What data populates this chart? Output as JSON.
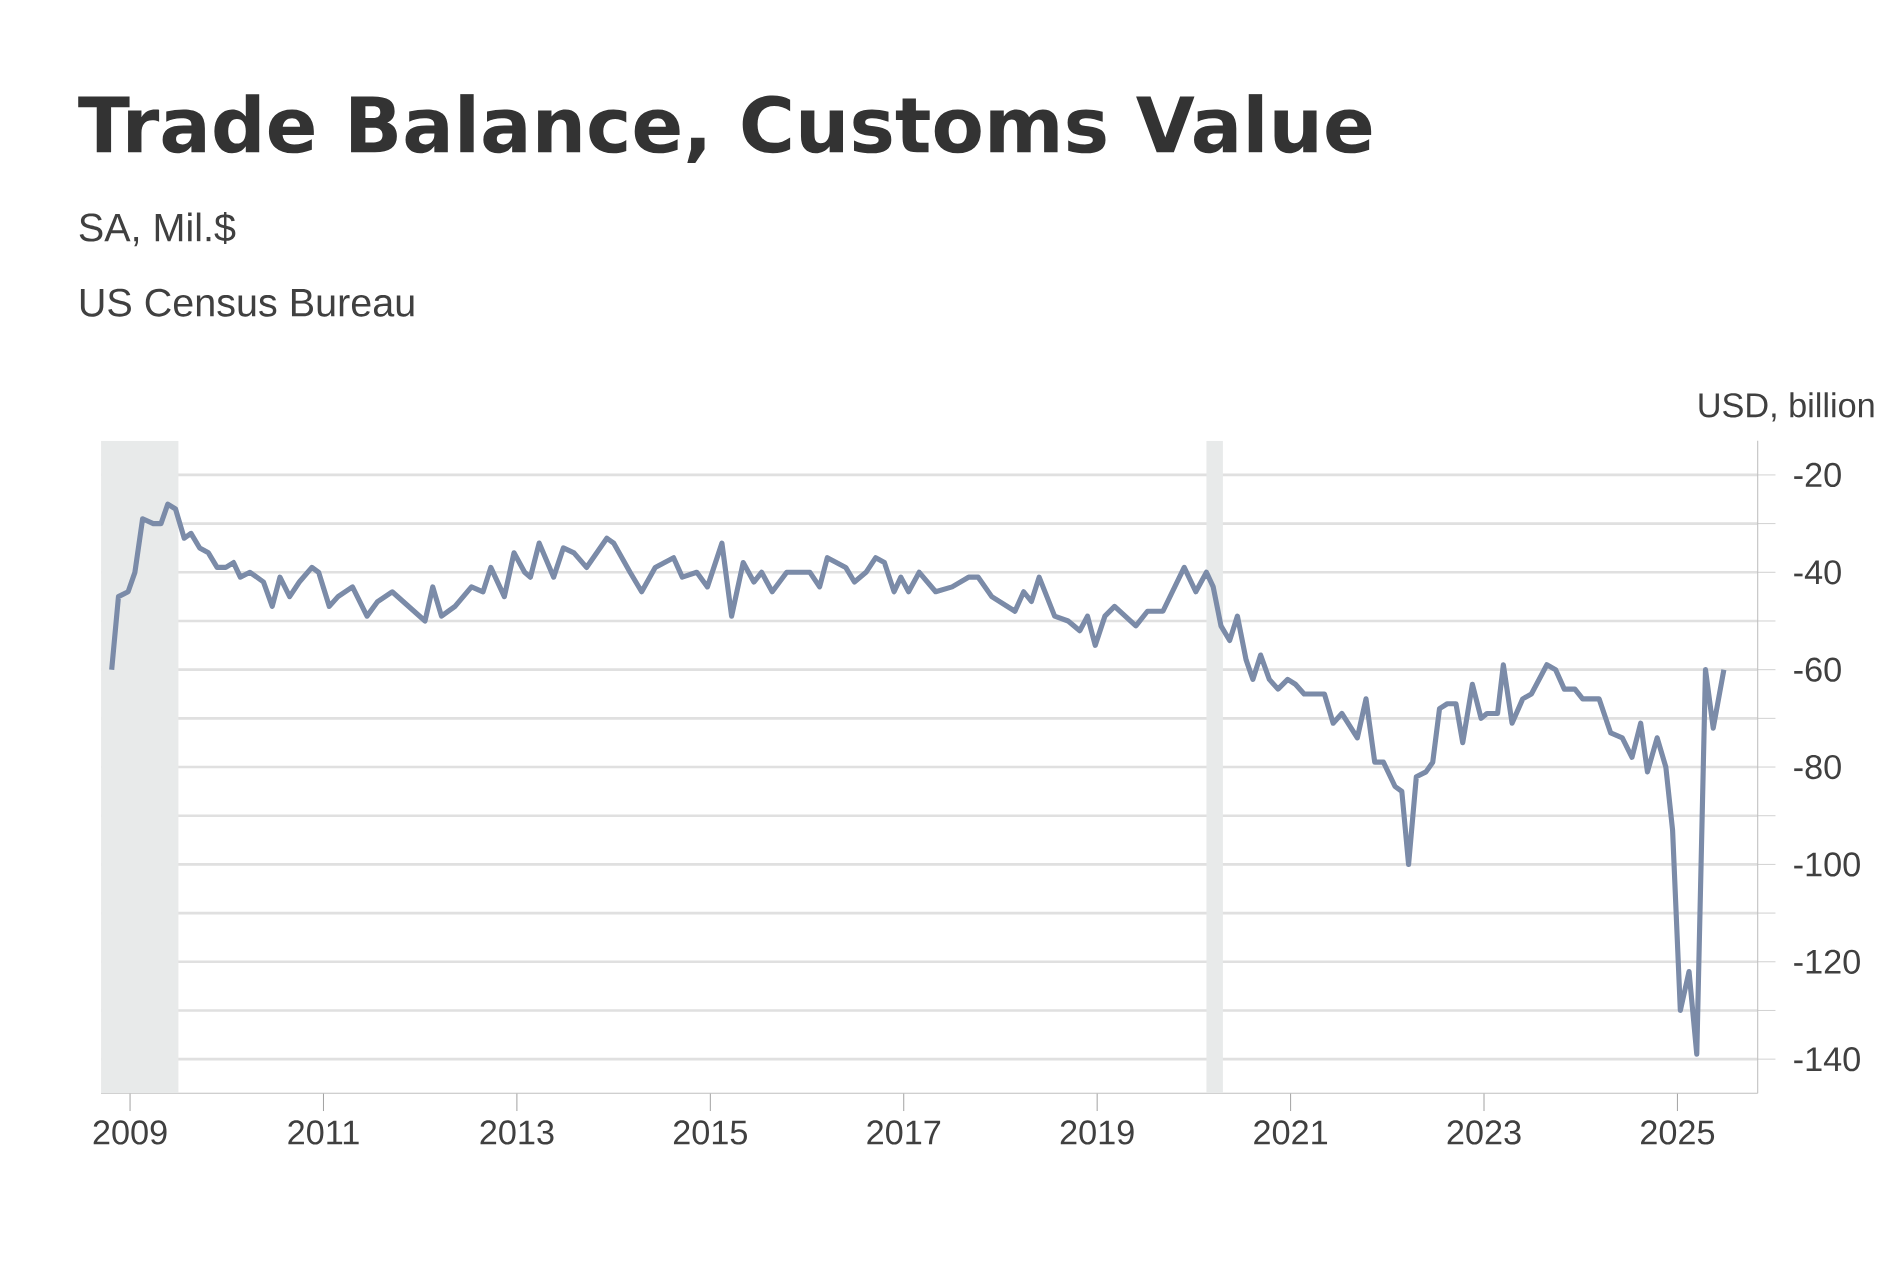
{
  "chart_data": {
    "type": "line",
    "title": "Trade Balance, Customs Value",
    "subtitle": "SA, Mil.$",
    "annotations": [
      "US Census Bureau"
    ],
    "ylabel": "USD, billion",
    "series": [
      {
        "color": "#7b8ba8",
        "x": [
          2008.81,
          2008.88,
          2008.98,
          2009.05,
          2009.13,
          2009.24,
          2009.32,
          2009.39,
          2009.47,
          2009.56,
          2009.63,
          2009.72,
          2009.81,
          2009.9,
          2009.99,
          2010.07,
          2010.14,
          2010.24,
          2010.38,
          2010.47,
          2010.55,
          2010.65,
          2010.75,
          2010.88,
          2010.95,
          2011.06,
          2011.15,
          2011.3,
          2011.45,
          2011.56,
          2011.71,
          2012.05,
          2012.13,
          2012.22,
          2012.36,
          2012.53,
          2012.65,
          2012.73,
          2012.87,
          2012.97,
          2013.08,
          2013.14,
          2013.23,
          2013.38,
          2013.48,
          2013.59,
          2013.72,
          2013.93,
          2014.0,
          2014.17,
          2014.29,
          2014.43,
          2014.62,
          2014.71,
          2014.86,
          2014.97,
          2015.12,
          2015.22,
          2015.34,
          2015.45,
          2015.53,
          2015.64,
          2015.79,
          2016.03,
          2016.13,
          2016.21,
          2016.4,
          2016.49,
          2016.61,
          2016.71,
          2016.8,
          2016.9,
          2016.97,
          2017.05,
          2017.16,
          2017.33,
          2017.5,
          2017.67,
          2017.77,
          2017.91,
          2018.15,
          2018.24,
          2018.32,
          2018.4,
          2018.56,
          2018.7,
          2018.82,
          2018.9,
          2018.98,
          2019.08,
          2019.18,
          2019.4,
          2019.52,
          2019.68,
          2019.9,
          2020.02,
          2020.13,
          2020.2,
          2020.28,
          2020.37,
          2020.45,
          2020.54,
          2020.61,
          2020.69,
          2020.78,
          2020.87,
          2020.97,
          2021.05,
          2021.14,
          2021.35,
          2021.44,
          2021.53,
          2021.69,
          2021.78,
          2021.87,
          2021.96,
          2022.08,
          2022.15,
          2022.22,
          2022.3,
          2022.4,
          2022.47,
          2022.54,
          2022.62,
          2022.71,
          2022.78,
          2022.88,
          2022.97,
          2023.03,
          2023.14,
          2023.2,
          2023.29,
          2023.4,
          2023.49,
          2023.65,
          2023.74,
          2023.83,
          2023.94,
          2024.02,
          2024.19,
          2024.31,
          2024.43,
          2024.53,
          2024.62,
          2024.69,
          2024.79,
          2024.88,
          2024.95,
          2025.03,
          2025.12,
          2025.2,
          2025.29,
          2025.37,
          2025.48
        ],
        "values": [
          -60,
          -45,
          -44,
          -40,
          -29,
          -30,
          -30,
          -26,
          -27,
          -33,
          -32,
          -35,
          -36,
          -39,
          -39,
          -38,
          -41,
          -40,
          -42,
          -47,
          -41,
          -45,
          -42,
          -39,
          -40,
          -47,
          -45,
          -43,
          -49,
          -46,
          -44,
          -50,
          -43,
          -49,
          -47,
          -43,
          -44,
          -39,
          -45,
          -36,
          -40,
          -41,
          -34,
          -41,
          -35,
          -36,
          -39,
          -33,
          -34,
          -40,
          -44,
          -39,
          -37,
          -41,
          -40,
          -43,
          -34,
          -49,
          -38,
          -42,
          -40,
          -44,
          -40,
          -40,
          -43,
          -37,
          -39,
          -42,
          -40,
          -37,
          -38,
          -44,
          -41,
          -44,
          -40,
          -44,
          -43,
          -41,
          -41,
          -45,
          -48,
          -44,
          -46,
          -41,
          -49,
          -50,
          -52,
          -49,
          -55,
          -49,
          -47,
          -51,
          -48,
          -48,
          -39,
          -44,
          -40,
          -43,
          -51,
          -54,
          -49,
          -58,
          -62,
          -57,
          -62,
          -64,
          -62,
          -63,
          -65,
          -65,
          -71,
          -69,
          -74,
          -66,
          -79,
          -79,
          -84,
          -85,
          -100,
          -82,
          -81,
          -79,
          -68,
          -67,
          -67,
          -75,
          -63,
          -70,
          -69,
          -69,
          -59,
          -71,
          -66,
          -65,
          -59,
          -60,
          -64,
          -64,
          -66,
          -66,
          -73,
          -74,
          -78,
          -71,
          -81,
          -74,
          -80,
          -93,
          -130,
          -122,
          -139,
          -60,
          -72,
          -60
        ]
      }
    ],
    "xlim": [
      2008.7,
      2025.83
    ],
    "xticks": [
      2009,
      2011,
      2013,
      2015,
      2017,
      2019,
      2021,
      2023,
      2025
    ],
    "ylim": [
      -147,
      -13
    ],
    "yticks": [
      -20,
      {
        "value": -30,
        "label": null
      },
      -40,
      {
        "value": -50,
        "label": null
      },
      -60,
      {
        "value": -70,
        "label": null
      },
      -80,
      {
        "value": -90,
        "label": null
      },
      -100,
      {
        "value": -110,
        "label": null
      },
      -120,
      {
        "value": -130,
        "label": null
      },
      -140
    ],
    "bands": [
      {
        "axis": "x",
        "from": 2008.7,
        "to": 2009.5,
        "color": "#e8eaea"
      },
      {
        "axis": "x",
        "from": 2020.13,
        "to": 2020.3,
        "color": "#e8eaea"
      }
    ],
    "grid": "y",
    "line_style": "solid",
    "marker": "none"
  }
}
